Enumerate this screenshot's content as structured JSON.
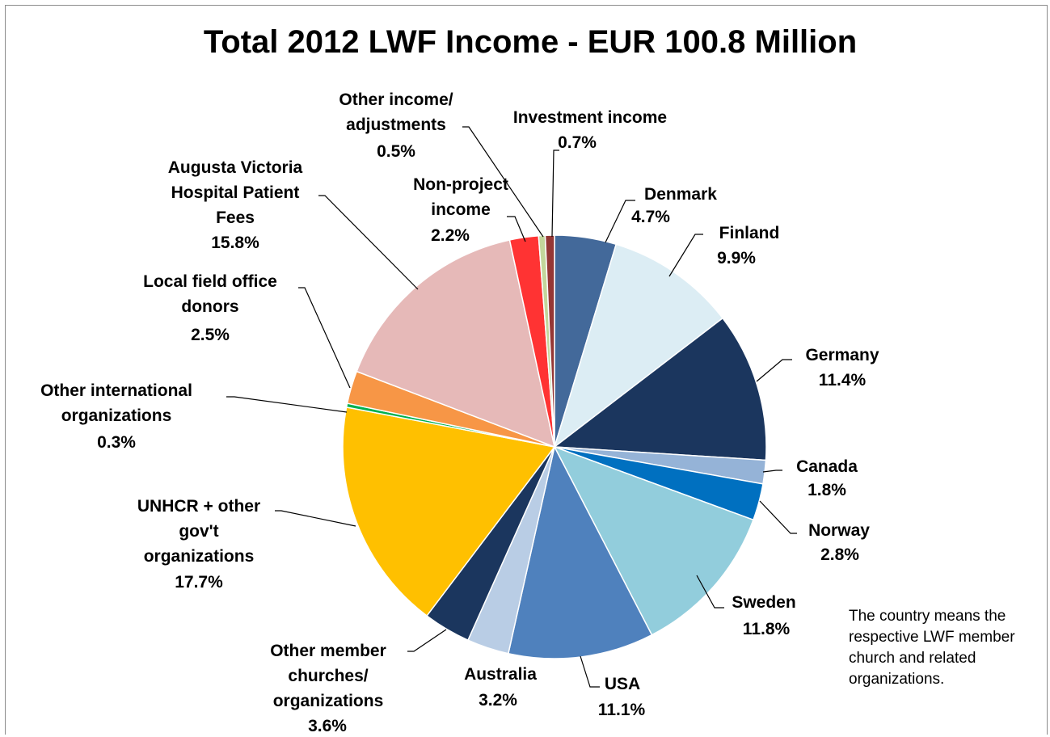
{
  "chart_data": {
    "type": "pie",
    "title": "Total 2012 LWF Income - EUR 100.8 Million",
    "slices": [
      {
        "label": "Denmark",
        "value": 4.7,
        "percent_label": "4.7%",
        "color": "#43699a"
      },
      {
        "label": "Finland",
        "value": 9.9,
        "percent_label": "9.9%",
        "color": "#dcedf4"
      },
      {
        "label": "Germany",
        "value": 11.4,
        "percent_label": "11.4%",
        "color": "#1b365e"
      },
      {
        "label": "Canada",
        "value": 1.8,
        "percent_label": "1.8%",
        "color": "#95b3d7"
      },
      {
        "label": "Norway",
        "value": 2.8,
        "percent_label": "2.8%",
        "color": "#0070c0"
      },
      {
        "label": "Sweden",
        "value": 11.8,
        "percent_label": "11.8%",
        "color": "#92cddc"
      },
      {
        "label": "USA",
        "value": 11.1,
        "percent_label": "11.1%",
        "color": "#4f81bd"
      },
      {
        "label": "Australia",
        "value": 3.2,
        "percent_label": "3.2%",
        "color": "#b9cde5"
      },
      {
        "label": "Other member churches/ organizations",
        "value": 3.6,
        "percent_label": "3.6%",
        "color": "#1b365e"
      },
      {
        "label": "UNHCR + other gov't organizations",
        "value": 17.7,
        "percent_label": "17.7%",
        "color": "#ffc000"
      },
      {
        "label": "Other international organizations",
        "value": 0.3,
        "percent_label": "0.3%",
        "color": "#00b050"
      },
      {
        "label": "Local field office donors",
        "value": 2.5,
        "percent_label": "2.5%",
        "color": "#f79646"
      },
      {
        "label": "Augusta Victoria Hospital Patient Fees",
        "value": 15.8,
        "percent_label": "15.8%",
        "color": "#e6b9b8"
      },
      {
        "label": "Non-project income",
        "value": 2.2,
        "percent_label": "2.2%",
        "color": "#ff3333"
      },
      {
        "label": "Other income/ adjustments",
        "value": 0.5,
        "percent_label": "0.5%",
        "color": "#c3d69b"
      },
      {
        "label": "Investment income",
        "value": 0.7,
        "percent_label": "0.7%",
        "color": "#953735"
      }
    ]
  },
  "footnote": "The country means the respective LWF member church and related organizations."
}
